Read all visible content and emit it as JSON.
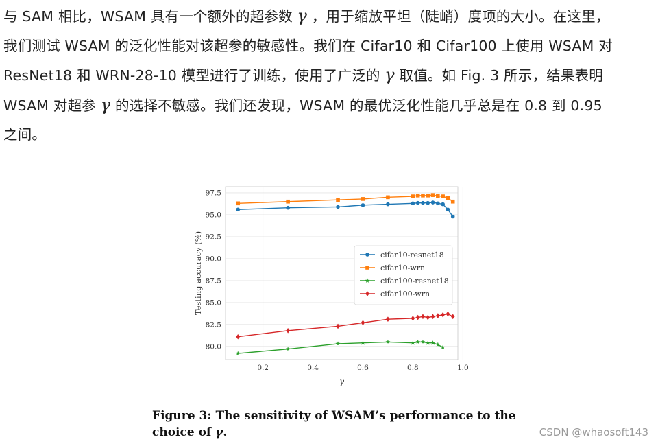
{
  "paragraph": {
    "line1_a": "与 SAM 相比，WSAM 具有一个额外的超参数 ",
    "gamma": "γ",
    "line1_b": " ，用于缩放平坦（陡峭）度项的大小。在这里，",
    "line2": "我们测试 WSAM 的泛化性能对该超参的敏感性。我们在 Cifar10 和 Cifar100 上使用 WSAM 对",
    "line3_a": "ResNet18 和 WRN-28-10 模型进行了训练，使用了广泛的 ",
    "line3_b": " 取值。如 Fig. 3 所示，结果表明",
    "line4_a": "WSAM 对超参 ",
    "line4_b": " 的选择不敏感。我们还发现，WSAM 的最优泛化性能几乎总是在 0.8 到 0.95",
    "line5": "之间。"
  },
  "caption": {
    "line1": "Figure 3: The sensitivity of WSAM’s performance to the",
    "line2_a": "choice of ",
    "gamma": "γ",
    "line2_b": "."
  },
  "watermark": "CSDN @whaosoft143",
  "chart_data": {
    "type": "line",
    "xlabel": "γ",
    "ylabel": "Testing accuracy (%)",
    "xlim": [
      0.05,
      0.98
    ],
    "ylim": [
      78.5,
      98.2
    ],
    "xticks": [
      0.2,
      0.4,
      0.6,
      0.8,
      1.0
    ],
    "xtick_labels": [
      "0.2",
      "0.4",
      "0.6",
      "0.8",
      "1.0"
    ],
    "yticks": [
      80.0,
      82.5,
      85.0,
      87.5,
      90.0,
      92.5,
      95.0,
      97.5
    ],
    "ytick_labels": [
      "80.0",
      "82.5",
      "85.0",
      "87.5",
      "90.0",
      "92.5",
      "95.0",
      "97.5"
    ],
    "grid": true,
    "legend_position": "center-right",
    "series": [
      {
        "name": "cifar10-resnet18",
        "color": "#1f77b4",
        "marker": "circle",
        "x": [
          0.1,
          0.3,
          0.5,
          0.6,
          0.7,
          0.8,
          0.82,
          0.84,
          0.86,
          0.88,
          0.9,
          0.92,
          0.94,
          0.96
        ],
        "y": [
          95.6,
          95.8,
          95.9,
          96.1,
          96.2,
          96.3,
          96.35,
          96.35,
          96.35,
          96.4,
          96.3,
          96.2,
          95.6,
          94.8
        ]
      },
      {
        "name": "cifar10-wrn",
        "color": "#ff7f0e",
        "marker": "square",
        "x": [
          0.1,
          0.3,
          0.5,
          0.6,
          0.7,
          0.8,
          0.82,
          0.84,
          0.86,
          0.88,
          0.9,
          0.92,
          0.94,
          0.96
        ],
        "y": [
          96.3,
          96.5,
          96.7,
          96.8,
          97.0,
          97.1,
          97.2,
          97.2,
          97.2,
          97.25,
          97.15,
          97.1,
          96.9,
          96.5
        ]
      },
      {
        "name": "cifar100-resnet18",
        "color": "#2ca02c",
        "marker": "star",
        "x": [
          0.1,
          0.3,
          0.5,
          0.6,
          0.7,
          0.8,
          0.82,
          0.84,
          0.86,
          0.88,
          0.9,
          0.92
        ],
        "y": [
          79.2,
          79.7,
          80.3,
          80.4,
          80.5,
          80.4,
          80.5,
          80.5,
          80.4,
          80.4,
          80.2,
          79.9
        ]
      },
      {
        "name": "cifar100-wrn",
        "color": "#d62728",
        "marker": "diamond",
        "x": [
          0.1,
          0.3,
          0.5,
          0.6,
          0.7,
          0.8,
          0.82,
          0.84,
          0.86,
          0.88,
          0.9,
          0.92,
          0.94,
          0.96
        ],
        "y": [
          81.1,
          81.8,
          82.3,
          82.7,
          83.1,
          83.2,
          83.3,
          83.4,
          83.3,
          83.4,
          83.5,
          83.6,
          83.7,
          83.4
        ]
      }
    ]
  }
}
